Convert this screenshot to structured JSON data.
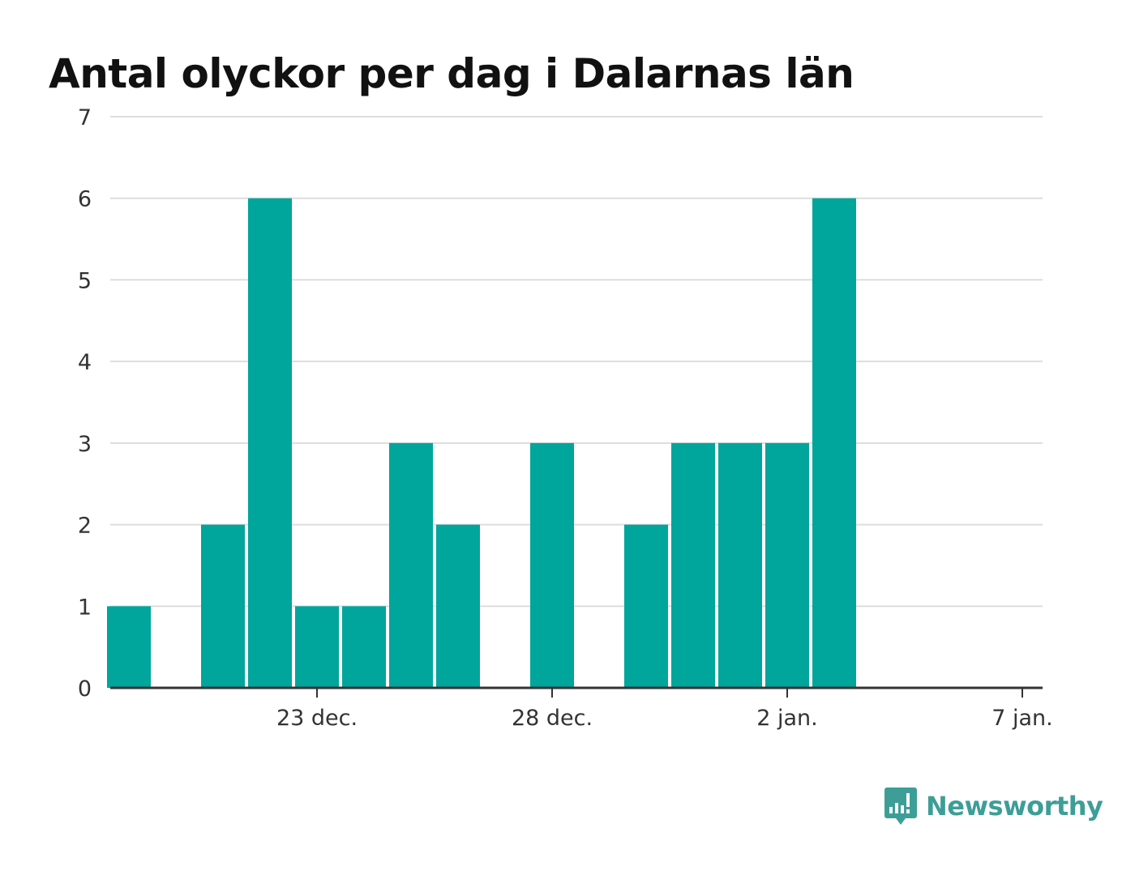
{
  "chart_data": {
    "type": "bar",
    "title": "Antal olyckor per dag i Dalarnas län",
    "xlabel": "",
    "ylabel": "",
    "x_dates": [
      "2020-12-19",
      "2020-12-20",
      "2020-12-21",
      "2020-12-22",
      "2020-12-23",
      "2020-12-24",
      "2020-12-25",
      "2020-12-26",
      "2020-12-27",
      "2020-12-28",
      "2020-12-29",
      "2020-12-30",
      "2020-12-31",
      "2021-01-01",
      "2021-01-02",
      "2021-01-03",
      "2021-01-04",
      "2021-01-05",
      "2021-01-06",
      "2021-01-07"
    ],
    "values": [
      1,
      0,
      2,
      6,
      1,
      1,
      3,
      2,
      0,
      3,
      0,
      2,
      3,
      3,
      3,
      6,
      0,
      0,
      0,
      0
    ],
    "ylim": [
      0,
      7
    ],
    "yticks": [
      "0",
      "1",
      "2",
      "3",
      "4",
      "5",
      "6",
      "7"
    ],
    "xticks": [
      {
        "date": "2020-12-23",
        "label": "23 dec."
      },
      {
        "date": "2020-12-28",
        "label": "28 dec."
      },
      {
        "date": "2021-01-02",
        "label": "2 jan."
      },
      {
        "date": "2021-01-07",
        "label": "7 jan."
      }
    ],
    "grid": true,
    "bar_color": "#00a59b"
  },
  "brand": {
    "name": "Newsworthy",
    "icon": "bar-chart-speech-bubble-icon",
    "color": "#3d9e98"
  }
}
